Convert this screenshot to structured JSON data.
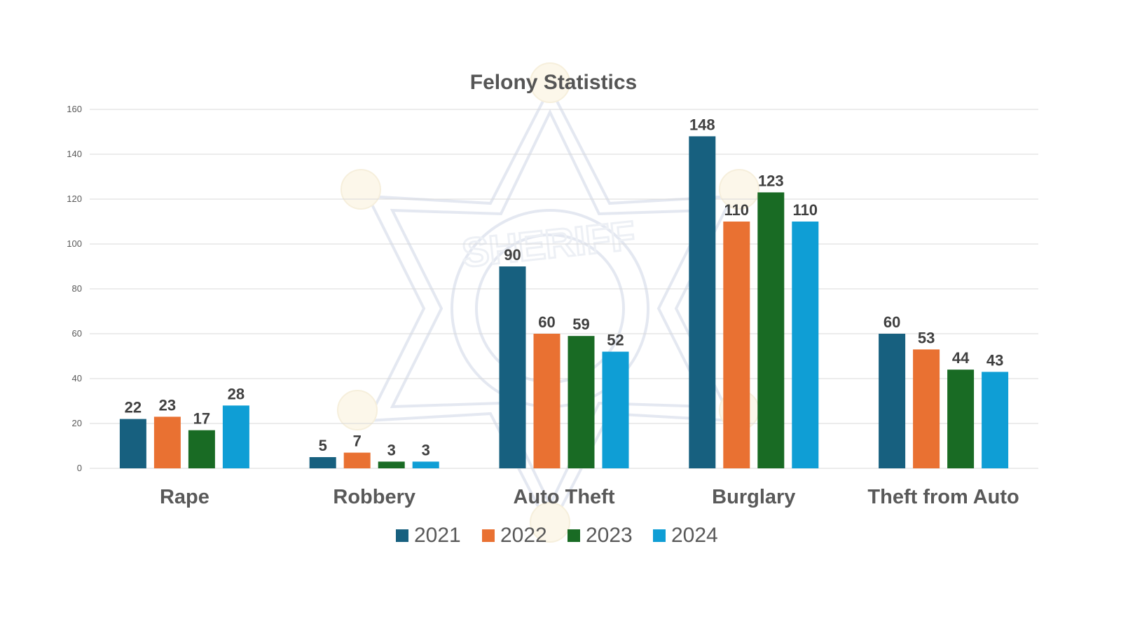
{
  "chart_data": {
    "type": "bar",
    "title": "Felony Statistics",
    "categories": [
      "Rape",
      "Robbery",
      "Auto Theft",
      "Burglary",
      "Theft from Auto"
    ],
    "series": [
      {
        "name": "2021",
        "color": "#17607f",
        "values": [
          22,
          5,
          90,
          148,
          60
        ]
      },
      {
        "name": "2022",
        "color": "#e97132",
        "values": [
          23,
          7,
          60,
          110,
          53
        ]
      },
      {
        "name": "2023",
        "color": "#196b24",
        "values": [
          17,
          3,
          59,
          123,
          44
        ]
      },
      {
        "name": "2024",
        "color": "#0f9ed5",
        "values": [
          28,
          3,
          52,
          110,
          43
        ]
      }
    ],
    "yticks": [
      0,
      20,
      40,
      60,
      80,
      100,
      120,
      140,
      160
    ],
    "ylim": [
      0,
      160
    ],
    "grid": true,
    "legend": "bottom",
    "data_labels": true,
    "watermark": {
      "icon": "sheriff-star-badge-icon",
      "text": "SHERIFF"
    }
  }
}
